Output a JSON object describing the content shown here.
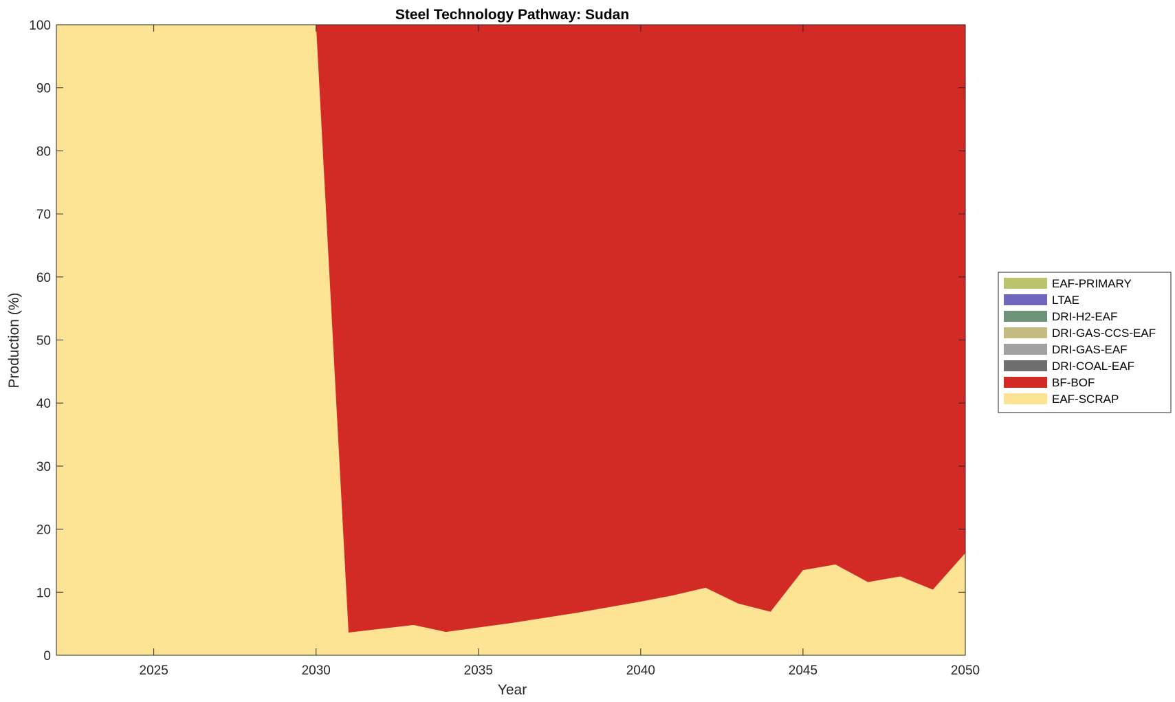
{
  "chart_data": {
    "type": "area",
    "stacked": true,
    "title": "Steel Technology Pathway: Sudan",
    "xlabel": "Year",
    "ylabel": "Production (%)",
    "xlim": [
      2022,
      2050
    ],
    "ylim": [
      0,
      100
    ],
    "xticks": [
      2025,
      2030,
      2035,
      2040,
      2045,
      2050
    ],
    "yticks": [
      0,
      10,
      20,
      30,
      40,
      50,
      60,
      70,
      80,
      90,
      100
    ],
    "legend_position": "right",
    "x": [
      2022,
      2023,
      2024,
      2025,
      2026,
      2027,
      2028,
      2029,
      2030,
      2031,
      2032,
      2033,
      2034,
      2035,
      2036,
      2037,
      2038,
      2039,
      2040,
      2041,
      2042,
      2043,
      2044,
      2045,
      2046,
      2047,
      2048,
      2049,
      2050
    ],
    "series": [
      {
        "name": "EAF-SCRAP",
        "color": "#fde394",
        "values": [
          100,
          100,
          100,
          100,
          100,
          100,
          100,
          100,
          100,
          3.6,
          4.2,
          4.8,
          3.7,
          4.4,
          5.1,
          5.9,
          6.7,
          7.6,
          8.5,
          9.5,
          10.7,
          8.2,
          6.9,
          13.5,
          14.4,
          11.6,
          12.5,
          10.4,
          16.2
        ]
      },
      {
        "name": "BF-BOF",
        "color": "#d22b25",
        "values": [
          0,
          0,
          0,
          0,
          0,
          0,
          0,
          0,
          0,
          96.4,
          95.8,
          95.2,
          96.3,
          95.6,
          94.9,
          94.1,
          93.3,
          92.4,
          91.5,
          90.5,
          89.3,
          91.8,
          93.1,
          86.5,
          85.6,
          88.4,
          87.5,
          89.6,
          83.8
        ]
      },
      {
        "name": "DRI-COAL-EAF",
        "color": "#6e6e6e",
        "values": [
          0,
          0,
          0,
          0,
          0,
          0,
          0,
          0,
          0,
          0,
          0,
          0,
          0,
          0,
          0,
          0,
          0,
          0,
          0,
          0,
          0,
          0,
          0,
          0,
          0,
          0,
          0,
          0,
          0
        ]
      },
      {
        "name": "DRI-GAS-EAF",
        "color": "#a0a0a0",
        "values": [
          0,
          0,
          0,
          0,
          0,
          0,
          0,
          0,
          0,
          0,
          0,
          0,
          0,
          0,
          0,
          0,
          0,
          0,
          0,
          0,
          0,
          0,
          0,
          0,
          0,
          0,
          0,
          0,
          0
        ]
      },
      {
        "name": "DRI-GAS-CCS-EAF",
        "color": "#c3bb82",
        "values": [
          0,
          0,
          0,
          0,
          0,
          0,
          0,
          0,
          0,
          0,
          0,
          0,
          0,
          0,
          0,
          0,
          0,
          0,
          0,
          0,
          0,
          0,
          0,
          0,
          0,
          0,
          0,
          0,
          0
        ]
      },
      {
        "name": "DRI-H2-EAF",
        "color": "#6e927a",
        "values": [
          0,
          0,
          0,
          0,
          0,
          0,
          0,
          0,
          0,
          0,
          0,
          0,
          0,
          0,
          0,
          0,
          0,
          0,
          0,
          0,
          0,
          0,
          0,
          0,
          0,
          0,
          0,
          0,
          0
        ]
      },
      {
        "name": "LTAE",
        "color": "#7066bc",
        "values": [
          0,
          0,
          0,
          0,
          0,
          0,
          0,
          0,
          0,
          0,
          0,
          0,
          0,
          0,
          0,
          0,
          0,
          0,
          0,
          0,
          0,
          0,
          0,
          0,
          0,
          0,
          0,
          0,
          0
        ]
      },
      {
        "name": "EAF-PRIMARY",
        "color": "#bac46c",
        "values": [
          0,
          0,
          0,
          0,
          0,
          0,
          0,
          0,
          0,
          0,
          0,
          0,
          0,
          0,
          0,
          0,
          0,
          0,
          0,
          0,
          0,
          0,
          0,
          0,
          0,
          0,
          0,
          0,
          0
        ]
      }
    ],
    "legend_order": [
      "EAF-PRIMARY",
      "LTAE",
      "DRI-H2-EAF",
      "DRI-GAS-CCS-EAF",
      "DRI-GAS-EAF",
      "DRI-COAL-EAF",
      "BF-BOF",
      "EAF-SCRAP"
    ]
  }
}
